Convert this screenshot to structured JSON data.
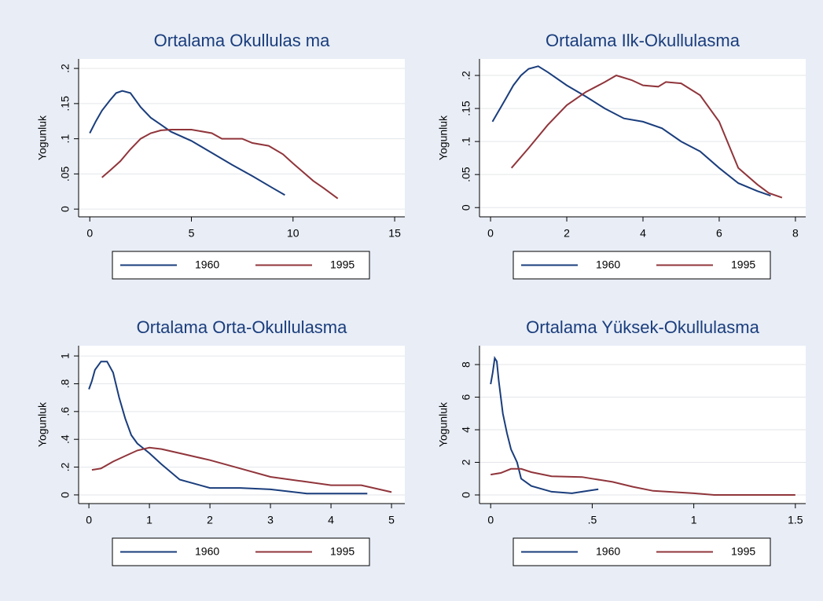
{
  "chart_data": [
    {
      "type": "line",
      "title": "Ortalama Okullulas ma",
      "ylabel": "Yogunluk",
      "grid": true,
      "xlim": [
        -0.55,
        15.5
      ],
      "xticks": [
        0,
        5,
        10,
        15
      ],
      "ylim": [
        -0.011,
        0.2135
      ],
      "yticks": [
        0,
        {
          "value": 0.05,
          "label": ".05"
        },
        {
          "value": 0.1,
          "label": ".1"
        },
        {
          "value": 0.15,
          "label": ".15"
        },
        {
          "value": 0.2,
          "label": ".2"
        }
      ],
      "series": [
        {
          "name": "1960",
          "color": "#1a3d7c",
          "x": [
            0,
            0.3,
            0.6,
            1,
            1.3,
            1.6,
            2,
            2.5,
            3,
            3.5,
            4,
            5,
            6,
            7,
            8,
            9,
            9.6
          ],
          "values": [
            0.108,
            0.125,
            0.14,
            0.155,
            0.165,
            0.168,
            0.165,
            0.145,
            0.13,
            0.12,
            0.11,
            0.097,
            0.08,
            0.063,
            0.047,
            0.03,
            0.02
          ]
        },
        {
          "name": "1995",
          "color": "#90353b",
          "x": [
            0.6,
            1,
            1.5,
            2,
            2.5,
            3,
            3.5,
            4,
            5,
            6,
            6.5,
            7.5,
            8,
            8.8,
            9.5,
            10,
            11,
            11.5,
            12.2
          ],
          "values": [
            0.045,
            0.055,
            0.068,
            0.085,
            0.1,
            0.108,
            0.112,
            0.113,
            0.113,
            0.108,
            0.1,
            0.1,
            0.094,
            0.09,
            0.078,
            0.065,
            0.04,
            0.03,
            0.015
          ]
        }
      ]
    },
    {
      "type": "line",
      "title": "Ortalama Ilk-Okullulasma",
      "ylabel": "Yogunluk",
      "grid": true,
      "xlim": [
        -0.29,
        8.27
      ],
      "xticks": [
        0,
        2,
        4,
        6,
        8
      ],
      "ylim": [
        -0.014,
        0.225
      ],
      "yticks": [
        0,
        {
          "value": 0.05,
          "label": ".05"
        },
        {
          "value": 0.1,
          "label": ".1"
        },
        {
          "value": 0.15,
          "label": ".15"
        },
        {
          "value": 0.2,
          "label": ".2"
        }
      ],
      "series": [
        {
          "name": "1960",
          "color": "#1a3d7c",
          "x": [
            0.05,
            0.2,
            0.4,
            0.6,
            0.8,
            1,
            1.25,
            1.5,
            2,
            2.5,
            3,
            3.5,
            4,
            4.5,
            5,
            5.5,
            6,
            6.5,
            7,
            7.35
          ],
          "values": [
            0.13,
            0.145,
            0.165,
            0.185,
            0.2,
            0.21,
            0.214,
            0.205,
            0.185,
            0.168,
            0.15,
            0.135,
            0.13,
            0.12,
            0.1,
            0.085,
            0.06,
            0.037,
            0.025,
            0.018
          ]
        },
        {
          "name": "1995",
          "color": "#90353b",
          "x": [
            0.55,
            1,
            1.5,
            2,
            2.5,
            3,
            3.3,
            3.7,
            4,
            4.4,
            4.6,
            5,
            5.5,
            6,
            6.5,
            7,
            7.3,
            7.65
          ],
          "values": [
            0.06,
            0.09,
            0.125,
            0.155,
            0.175,
            0.19,
            0.2,
            0.193,
            0.185,
            0.183,
            0.19,
            0.188,
            0.17,
            0.13,
            0.06,
            0.035,
            0.022,
            0.015
          ]
        }
      ]
    },
    {
      "type": "line",
      "title": "Ortalama Orta-Okullulasma",
      "ylabel": "Yogunluk",
      "grid": true,
      "xlim": [
        -0.17,
        5.22
      ],
      "xticks": [
        0,
        1,
        2,
        3,
        4,
        5
      ],
      "ylim": [
        -0.0625,
        1.074
      ],
      "yticks": [
        0,
        {
          "value": 0.2,
          "label": ".2"
        },
        {
          "value": 0.4,
          "label": ".4"
        },
        {
          "value": 0.6,
          "label": ".6"
        },
        {
          "value": 0.8,
          "label": ".8"
        },
        1
      ],
      "series": [
        {
          "name": "1960",
          "color": "#1a3d7c",
          "x": [
            0,
            0.05,
            0.1,
            0.2,
            0.3,
            0.4,
            0.5,
            0.6,
            0.7,
            0.8,
            1,
            1.2,
            1.5,
            2,
            2.5,
            3,
            3.6,
            4.6
          ],
          "values": [
            0.76,
            0.82,
            0.9,
            0.96,
            0.96,
            0.88,
            0.7,
            0.55,
            0.43,
            0.37,
            0.3,
            0.22,
            0.11,
            0.05,
            0.05,
            0.04,
            0.01,
            0.01
          ]
        },
        {
          "name": "1995",
          "color": "#90353b",
          "x": [
            0.05,
            0.2,
            0.4,
            0.6,
            0.8,
            1,
            1.2,
            1.5,
            2,
            2.5,
            3,
            3.5,
            4,
            4.5,
            5
          ],
          "values": [
            0.18,
            0.19,
            0.24,
            0.28,
            0.32,
            0.34,
            0.33,
            0.3,
            0.25,
            0.19,
            0.13,
            0.1,
            0.07,
            0.07,
            0.02
          ]
        }
      ]
    },
    {
      "type": "line",
      "title": "Ortalama Yüksek-Okullulasma",
      "ylabel": "Yogunluk",
      "grid": true,
      "xlim": [
        -0.055,
        1.551
      ],
      "xticks": [
        0,
        {
          "value": 0.5,
          "label": ".5"
        },
        1,
        1.5
      ],
      "ylim": [
        -0.53,
        9.16
      ],
      "yticks": [
        0,
        2,
        4,
        6,
        8
      ],
      "series": [
        {
          "name": "1960",
          "color": "#1a3d7c",
          "x": [
            0,
            0.01,
            0.02,
            0.03,
            0.04,
            0.06,
            0.08,
            0.1,
            0.13,
            0.15,
            0.2,
            0.3,
            0.4,
            0.45,
            0.53
          ],
          "values": [
            6.8,
            7.5,
            8.4,
            8.2,
            7,
            5,
            3.8,
            2.8,
            2,
            1,
            0.55,
            0.2,
            0.1,
            0.2,
            0.35
          ]
        },
        {
          "name": "1995",
          "color": "#90353b",
          "x": [
            0,
            0.05,
            0.1,
            0.15,
            0.2,
            0.3,
            0.45,
            0.5,
            0.6,
            0.7,
            0.8,
            1,
            1.1,
            1.5
          ],
          "values": [
            1.25,
            1.35,
            1.6,
            1.6,
            1.4,
            1.15,
            1.1,
            1,
            0.8,
            0.5,
            0.25,
            0.1,
            0,
            0
          ]
        }
      ]
    }
  ]
}
